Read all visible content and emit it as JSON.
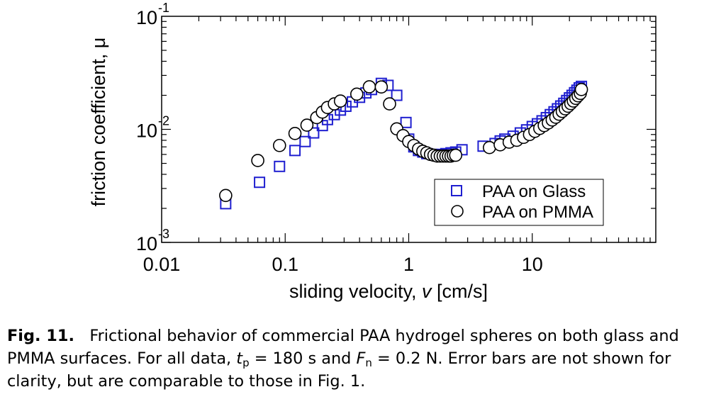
{
  "chart_data": {
    "type": "scatter",
    "xlabel": "sliding velocity, v [cm/s]",
    "xlabel_parts": {
      "main": "sliding velocity, ",
      "symbol": "v",
      "unit": " [cm/s]"
    },
    "ylabel": "friction coefficient, μ",
    "x_scale": "log",
    "y_scale": "log",
    "xlim": [
      0.01,
      100
    ],
    "ylim": [
      0.001,
      0.1
    ],
    "x_ticks": [
      {
        "value": 0.01,
        "label": "0.01"
      },
      {
        "value": 0.1,
        "label": "0.1"
      },
      {
        "value": 1,
        "label": "1"
      },
      {
        "value": 10,
        "label": "10"
      }
    ],
    "y_ticks": [
      {
        "value": 0.001,
        "base": "10",
        "exp": "-3"
      },
      {
        "value": 0.01,
        "base": "10",
        "exp": "-2"
      },
      {
        "value": 0.1,
        "base": "10",
        "exp": "-1"
      }
    ],
    "grid": false,
    "legend_position": "bottom-right",
    "series": [
      {
        "name": "PAA on Glass",
        "marker": "square",
        "color": "#1f1fd0",
        "x": [
          0.033,
          0.062,
          0.09,
          0.12,
          0.145,
          0.17,
          0.2,
          0.22,
          0.25,
          0.28,
          0.31,
          0.35,
          0.4,
          0.45,
          0.5,
          0.6,
          0.68,
          0.8,
          0.95,
          1.0,
          1.1,
          1.2,
          1.3,
          1.4,
          1.55,
          1.7,
          1.85,
          2.0,
          2.2,
          2.4,
          2.7,
          4.0,
          5.0,
          5.5,
          6.0,
          7.0,
          8.0,
          9.0,
          10.0,
          11.0,
          12.0,
          13.0,
          14.0,
          15.0,
          16.0,
          17.0,
          18.0,
          19.0,
          20.0,
          21.0,
          22.0,
          23.0,
          24.0,
          25.0
        ],
        "y": [
          0.0022,
          0.0034,
          0.0047,
          0.0065,
          0.0078,
          0.0093,
          0.0108,
          0.0122,
          0.0135,
          0.0148,
          0.016,
          0.0175,
          0.0192,
          0.021,
          0.0225,
          0.0255,
          0.0245,
          0.02,
          0.0115,
          0.0082,
          0.007,
          0.0065,
          0.0063,
          0.0061,
          0.006,
          0.006,
          0.006,
          0.0061,
          0.0062,
          0.0063,
          0.0066,
          0.0071,
          0.0075,
          0.0079,
          0.0082,
          0.0087,
          0.0093,
          0.0099,
          0.0106,
          0.0112,
          0.0119,
          0.0127,
          0.0135,
          0.0143,
          0.0152,
          0.0161,
          0.017,
          0.018,
          0.019,
          0.02,
          0.0211,
          0.0222,
          0.0233,
          0.024
        ]
      },
      {
        "name": "PAA on PMMA",
        "marker": "circle",
        "color": "#000000",
        "x": [
          0.033,
          0.06,
          0.09,
          0.12,
          0.15,
          0.18,
          0.2,
          0.22,
          0.25,
          0.28,
          0.38,
          0.48,
          0.6,
          0.7,
          0.8,
          0.9,
          1.0,
          1.1,
          1.2,
          1.3,
          1.4,
          1.5,
          1.6,
          1.7,
          1.8,
          1.9,
          2.0,
          2.1,
          2.2,
          2.3,
          2.4,
          4.5,
          5.5,
          6.5,
          7.5,
          8.5,
          9.5,
          10.5,
          11.5,
          12.5,
          13.5,
          14.5,
          15.5,
          16.5,
          17.5,
          18.5,
          19.5,
          20.5,
          21.5,
          22.5,
          23.5,
          24.5,
          25.0
        ],
        "y": [
          0.0026,
          0.0053,
          0.0072,
          0.0092,
          0.0109,
          0.0127,
          0.0142,
          0.0156,
          0.0168,
          0.0178,
          0.0205,
          0.0238,
          0.0237,
          0.0168,
          0.0101,
          0.0088,
          0.0078,
          0.0072,
          0.0067,
          0.0064,
          0.0062,
          0.006,
          0.0059,
          0.0058,
          0.0058,
          0.0058,
          0.0058,
          0.0058,
          0.0058,
          0.0059,
          0.0059,
          0.0069,
          0.0073,
          0.0077,
          0.008,
          0.0085,
          0.009,
          0.0096,
          0.0102,
          0.0108,
          0.0114,
          0.0121,
          0.0128,
          0.0136,
          0.0144,
          0.0152,
          0.016,
          0.0169,
          0.0178,
          0.0188,
          0.0198,
          0.0208,
          0.0225
        ]
      }
    ]
  },
  "caption": {
    "label": "Fig. 11.",
    "text_1": "Frictional behavior of commercial PAA hydrogel spheres on both glass and PMMA surfaces. For all data, ",
    "tp_symbol": "t",
    "tp_sub": "p",
    "text_2": " = 180 s and ",
    "fn_symbol": "F",
    "fn_sub": "n",
    "text_3": " = 0.2 N. Error bars are not shown for clarity, but are comparable to those in Fig. 1."
  }
}
